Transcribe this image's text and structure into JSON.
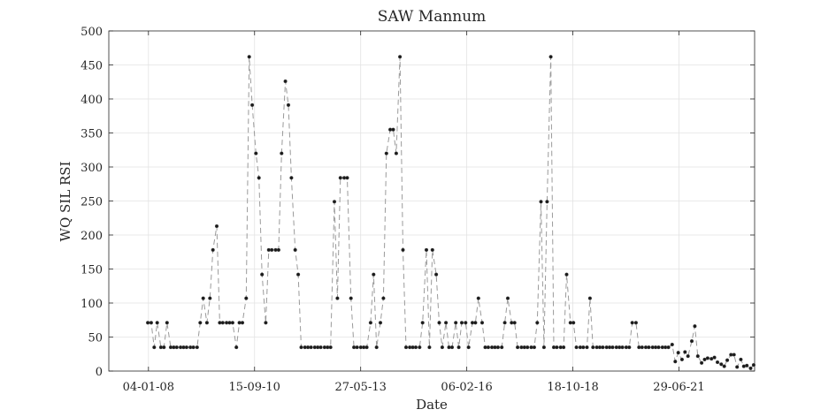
{
  "chart_data": {
    "type": "line",
    "title": "SAW Mannum",
    "xlabel": "Date",
    "ylabel": "WQ SIL RSI",
    "ylim": [
      0,
      500
    ],
    "yticks": [
      0,
      50,
      100,
      150,
      200,
      250,
      300,
      350,
      400,
      450,
      500
    ],
    "xlim": [
      "2007-01-01",
      "2023-06-01"
    ],
    "xticks": [
      {
        "date": "2008-01-04",
        "label": "04-01-08"
      },
      {
        "date": "2010-09-15",
        "label": "15-09-10"
      },
      {
        "date": "2013-05-27",
        "label": "27-05-13"
      },
      {
        "date": "2016-02-06",
        "label": "06-02-16"
      },
      {
        "date": "2018-10-18",
        "label": "18-10-18"
      },
      {
        "date": "2021-06-29",
        "label": "29-06-21"
      }
    ],
    "grid": true,
    "line_color": "#9a9a9a",
    "marker_color": "#1a1a1a",
    "series": [
      {
        "points": [
          [
            "2007-12-29",
            71
          ],
          [
            "2008-01-29",
            71
          ],
          [
            "2008-02-26",
            35
          ],
          [
            "2008-03-25",
            71
          ],
          [
            "2008-04-29",
            35
          ],
          [
            "2008-05-27",
            35
          ],
          [
            "2008-06-24",
            71
          ],
          [
            "2008-07-29",
            35
          ],
          [
            "2008-08-26",
            35
          ],
          [
            "2008-09-23",
            35
          ],
          [
            "2008-10-28",
            35
          ],
          [
            "2008-11-25",
            35
          ],
          [
            "2008-12-23",
            35
          ],
          [
            "2009-01-27",
            35
          ],
          [
            "2009-02-24",
            35
          ],
          [
            "2009-03-31",
            35
          ],
          [
            "2009-04-28",
            71
          ],
          [
            "2009-05-26",
            107
          ],
          [
            "2009-06-30",
            71
          ],
          [
            "2009-07-28",
            107
          ],
          [
            "2009-08-25",
            178
          ],
          [
            "2009-09-29",
            213
          ],
          [
            "2009-10-27",
            71
          ],
          [
            "2009-11-24",
            71
          ],
          [
            "2009-12-29",
            71
          ],
          [
            "2010-01-26",
            71
          ],
          [
            "2010-02-23",
            71
          ],
          [
            "2010-03-30",
            35
          ],
          [
            "2010-04-27",
            71
          ],
          [
            "2010-05-25",
            71
          ],
          [
            "2010-06-29",
            107
          ],
          [
            "2010-07-27",
            462
          ],
          [
            "2010-08-24",
            391
          ],
          [
            "2010-09-28",
            320
          ],
          [
            "2010-10-26",
            284
          ],
          [
            "2010-11-23",
            142
          ],
          [
            "2010-12-28",
            71
          ],
          [
            "2011-01-25",
            178
          ],
          [
            "2011-02-22",
            178
          ],
          [
            "2011-03-29",
            178
          ],
          [
            "2011-04-26",
            178
          ],
          [
            "2011-05-24",
            320
          ],
          [
            "2011-06-28",
            426
          ],
          [
            "2011-07-26",
            391
          ],
          [
            "2011-08-23",
            284
          ],
          [
            "2011-09-27",
            178
          ],
          [
            "2011-10-25",
            142
          ],
          [
            "2011-11-22",
            35
          ],
          [
            "2011-12-27",
            35
          ],
          [
            "2012-01-24",
            35
          ],
          [
            "2012-02-21",
            35
          ],
          [
            "2012-03-27",
            35
          ],
          [
            "2012-04-24",
            35
          ],
          [
            "2012-05-22",
            35
          ],
          [
            "2012-06-26",
            35
          ],
          [
            "2012-07-24",
            35
          ],
          [
            "2012-08-21",
            35
          ],
          [
            "2012-09-25",
            249
          ],
          [
            "2012-10-23",
            107
          ],
          [
            "2012-11-20",
            284
          ],
          [
            "2012-12-25",
            284
          ],
          [
            "2013-01-22",
            284
          ],
          [
            "2013-02-26",
            107
          ],
          [
            "2013-03-26",
            35
          ],
          [
            "2013-04-23",
            35
          ],
          [
            "2013-05-28",
            35
          ],
          [
            "2013-06-25",
            35
          ],
          [
            "2013-07-23",
            35
          ],
          [
            "2013-08-27",
            71
          ],
          [
            "2013-09-24",
            142
          ],
          [
            "2013-10-22",
            35
          ],
          [
            "2013-11-26",
            71
          ],
          [
            "2013-12-24",
            107
          ],
          [
            "2014-01-21",
            320
          ],
          [
            "2014-02-25",
            355
          ],
          [
            "2014-03-25",
            355
          ],
          [
            "2014-04-22",
            320
          ],
          [
            "2014-05-27",
            462
          ],
          [
            "2014-06-24",
            178
          ],
          [
            "2014-07-22",
            35
          ],
          [
            "2014-08-26",
            35
          ],
          [
            "2014-09-23",
            35
          ],
          [
            "2014-10-21",
            35
          ],
          [
            "2014-11-25",
            35
          ],
          [
            "2014-12-23",
            71
          ],
          [
            "2015-01-27",
            178
          ],
          [
            "2015-02-24",
            35
          ],
          [
            "2015-03-24",
            178
          ],
          [
            "2015-04-28",
            142
          ],
          [
            "2015-05-26",
            71
          ],
          [
            "2015-06-23",
            35
          ],
          [
            "2015-07-28",
            71
          ],
          [
            "2015-08-25",
            35
          ],
          [
            "2015-09-22",
            35
          ],
          [
            "2015-10-27",
            71
          ],
          [
            "2015-11-24",
            35
          ],
          [
            "2015-12-22",
            71
          ],
          [
            "2016-01-26",
            71
          ],
          [
            "2016-02-23",
            35
          ],
          [
            "2016-03-29",
            71
          ],
          [
            "2016-04-26",
            71
          ],
          [
            "2016-05-24",
            107
          ],
          [
            "2016-06-28",
            71
          ],
          [
            "2016-07-26",
            35
          ],
          [
            "2016-08-23",
            35
          ],
          [
            "2016-09-27",
            35
          ],
          [
            "2016-10-25",
            35
          ],
          [
            "2016-11-22",
            35
          ],
          [
            "2016-12-27",
            35
          ],
          [
            "2017-01-24",
            71
          ],
          [
            "2017-02-21",
            107
          ],
          [
            "2017-03-28",
            71
          ],
          [
            "2017-04-25",
            71
          ],
          [
            "2017-05-23",
            35
          ],
          [
            "2017-06-27",
            35
          ],
          [
            "2017-07-25",
            35
          ],
          [
            "2017-08-22",
            35
          ],
          [
            "2017-09-26",
            35
          ],
          [
            "2017-10-24",
            35
          ],
          [
            "2017-11-21",
            71
          ],
          [
            "2017-12-26",
            249
          ],
          [
            "2018-01-23",
            35
          ],
          [
            "2018-02-20",
            249
          ],
          [
            "2018-03-27",
            462
          ],
          [
            "2018-04-24",
            35
          ],
          [
            "2018-05-22",
            35
          ],
          [
            "2018-06-26",
            35
          ],
          [
            "2018-07-24",
            35
          ],
          [
            "2018-08-21",
            142
          ],
          [
            "2018-09-25",
            71
          ],
          [
            "2018-10-23",
            71
          ],
          [
            "2018-11-20",
            35
          ],
          [
            "2018-12-25",
            35
          ],
          [
            "2019-01-22",
            35
          ],
          [
            "2019-02-26",
            35
          ],
          [
            "2019-03-26",
            107
          ],
          [
            "2019-04-23",
            35
          ],
          [
            "2019-05-28",
            35
          ],
          [
            "2019-06-25",
            35
          ],
          [
            "2019-07-23",
            35
          ],
          [
            "2019-08-27",
            35
          ],
          [
            "2019-09-24",
            35
          ],
          [
            "2019-10-22",
            35
          ],
          [
            "2019-11-26",
            35
          ],
          [
            "2019-12-24",
            35
          ],
          [
            "2020-01-21",
            35
          ],
          [
            "2020-02-25",
            35
          ],
          [
            "2020-03-24",
            35
          ],
          [
            "2020-04-21",
            71
          ],
          [
            "2020-05-26",
            71
          ],
          [
            "2020-06-23",
            35
          ],
          [
            "2020-07-21",
            35
          ],
          [
            "2020-08-25",
            35
          ],
          [
            "2020-09-22",
            35
          ],
          [
            "2020-10-27",
            35
          ],
          [
            "2020-11-24",
            35
          ],
          [
            "2020-12-22",
            35
          ],
          [
            "2021-01-26",
            35
          ],
          [
            "2021-02-23",
            35
          ],
          [
            "2021-03-23",
            35
          ],
          [
            "2021-04-27",
            39
          ],
          [
            "2021-05-25",
            14
          ],
          [
            "2021-06-22",
            27
          ],
          [
            "2021-07-27",
            17
          ],
          [
            "2021-08-24",
            28
          ],
          [
            "2021-09-21",
            22
          ],
          [
            "2021-10-26",
            44
          ],
          [
            "2021-11-23",
            66
          ],
          [
            "2021-12-21",
            22
          ],
          [
            "2022-01-25",
            12
          ],
          [
            "2022-02-22",
            17
          ],
          [
            "2022-03-22",
            19
          ],
          [
            "2022-04-26",
            18
          ],
          [
            "2022-05-24",
            20
          ],
          [
            "2022-06-21",
            13
          ],
          [
            "2022-07-26",
            10
          ],
          [
            "2022-08-23",
            7
          ],
          [
            "2022-09-20",
            16
          ],
          [
            "2022-10-25",
            24
          ],
          [
            "2022-11-22",
            24
          ],
          [
            "2022-12-20",
            6
          ],
          [
            "2023-01-24",
            17
          ],
          [
            "2023-02-21",
            7
          ],
          [
            "2023-03-21",
            8
          ],
          [
            "2023-04-25",
            4
          ],
          [
            "2023-05-23",
            9
          ]
        ]
      }
    ]
  }
}
